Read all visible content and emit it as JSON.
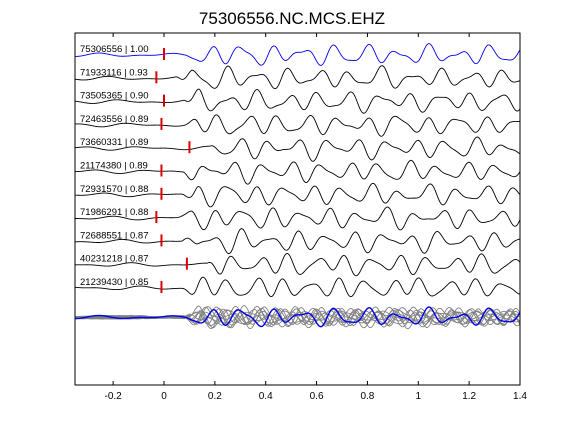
{
  "chart_data": {
    "type": "line",
    "title": "75306556.NC.MCS.EHZ",
    "xlabel": "",
    "ylabel": "",
    "xlim": [
      -0.35,
      1.4
    ],
    "x_ticks": [
      "-0.2",
      "0",
      "0.2",
      "0.4",
      "0.6",
      "0.8",
      "1",
      "1.2",
      "1.4"
    ],
    "x_tick_values": [
      -0.2,
      0,
      0.2,
      0.4,
      0.6,
      0.8,
      1.0,
      1.2,
      1.4
    ],
    "grid": false,
    "colors": {
      "reference": "#0000ee",
      "trace": "#000000",
      "pick": "#dd0000",
      "stack_other": "#808080"
    },
    "traces": [
      {
        "label": "75306556 | 1.00",
        "event_id": "75306556",
        "cc": 1.0,
        "pick_time": 0.0,
        "color": "reference",
        "seed": 0
      },
      {
        "label": "71933116 | 0.93",
        "event_id": "71933116",
        "cc": 0.93,
        "pick_time": -0.03,
        "color": "trace",
        "seed": 1
      },
      {
        "label": "73505365 | 0.90",
        "event_id": "73505365",
        "cc": 0.9,
        "pick_time": 0.0,
        "color": "trace",
        "seed": 2
      },
      {
        "label": "72463556 | 0.89",
        "event_id": "72463556",
        "cc": 0.89,
        "pick_time": -0.01,
        "color": "trace",
        "seed": 3
      },
      {
        "label": "73660331 | 0.89",
        "event_id": "73660331",
        "cc": 0.89,
        "pick_time": 0.1,
        "color": "trace",
        "seed": 4
      },
      {
        "label": "21174380 | 0.89",
        "event_id": "21174380",
        "cc": 0.89,
        "pick_time": -0.01,
        "color": "trace",
        "seed": 5
      },
      {
        "label": "72931570 | 0.88",
        "event_id": "72931570",
        "cc": 0.88,
        "pick_time": -0.01,
        "color": "trace",
        "seed": 6
      },
      {
        "label": "71986291 | 0.88",
        "event_id": "71986291",
        "cc": 0.88,
        "pick_time": -0.03,
        "color": "trace",
        "seed": 7
      },
      {
        "label": "72688551 | 0.87",
        "event_id": "72688551",
        "cc": 0.87,
        "pick_time": -0.01,
        "color": "trace",
        "seed": 8
      },
      {
        "label": "40231218 | 0.87",
        "event_id": "40231218",
        "cc": 0.87,
        "pick_time": 0.09,
        "color": "trace",
        "seed": 9
      },
      {
        "label": "21239430 | 0.85",
        "event_id": "21239430",
        "cc": 0.85,
        "pick_time": -0.01,
        "color": "trace",
        "seed": 10
      }
    ],
    "stack": {
      "description": "",
      "overlay_count": 10,
      "reference_color": "reference",
      "other_color": "stack_other"
    }
  }
}
